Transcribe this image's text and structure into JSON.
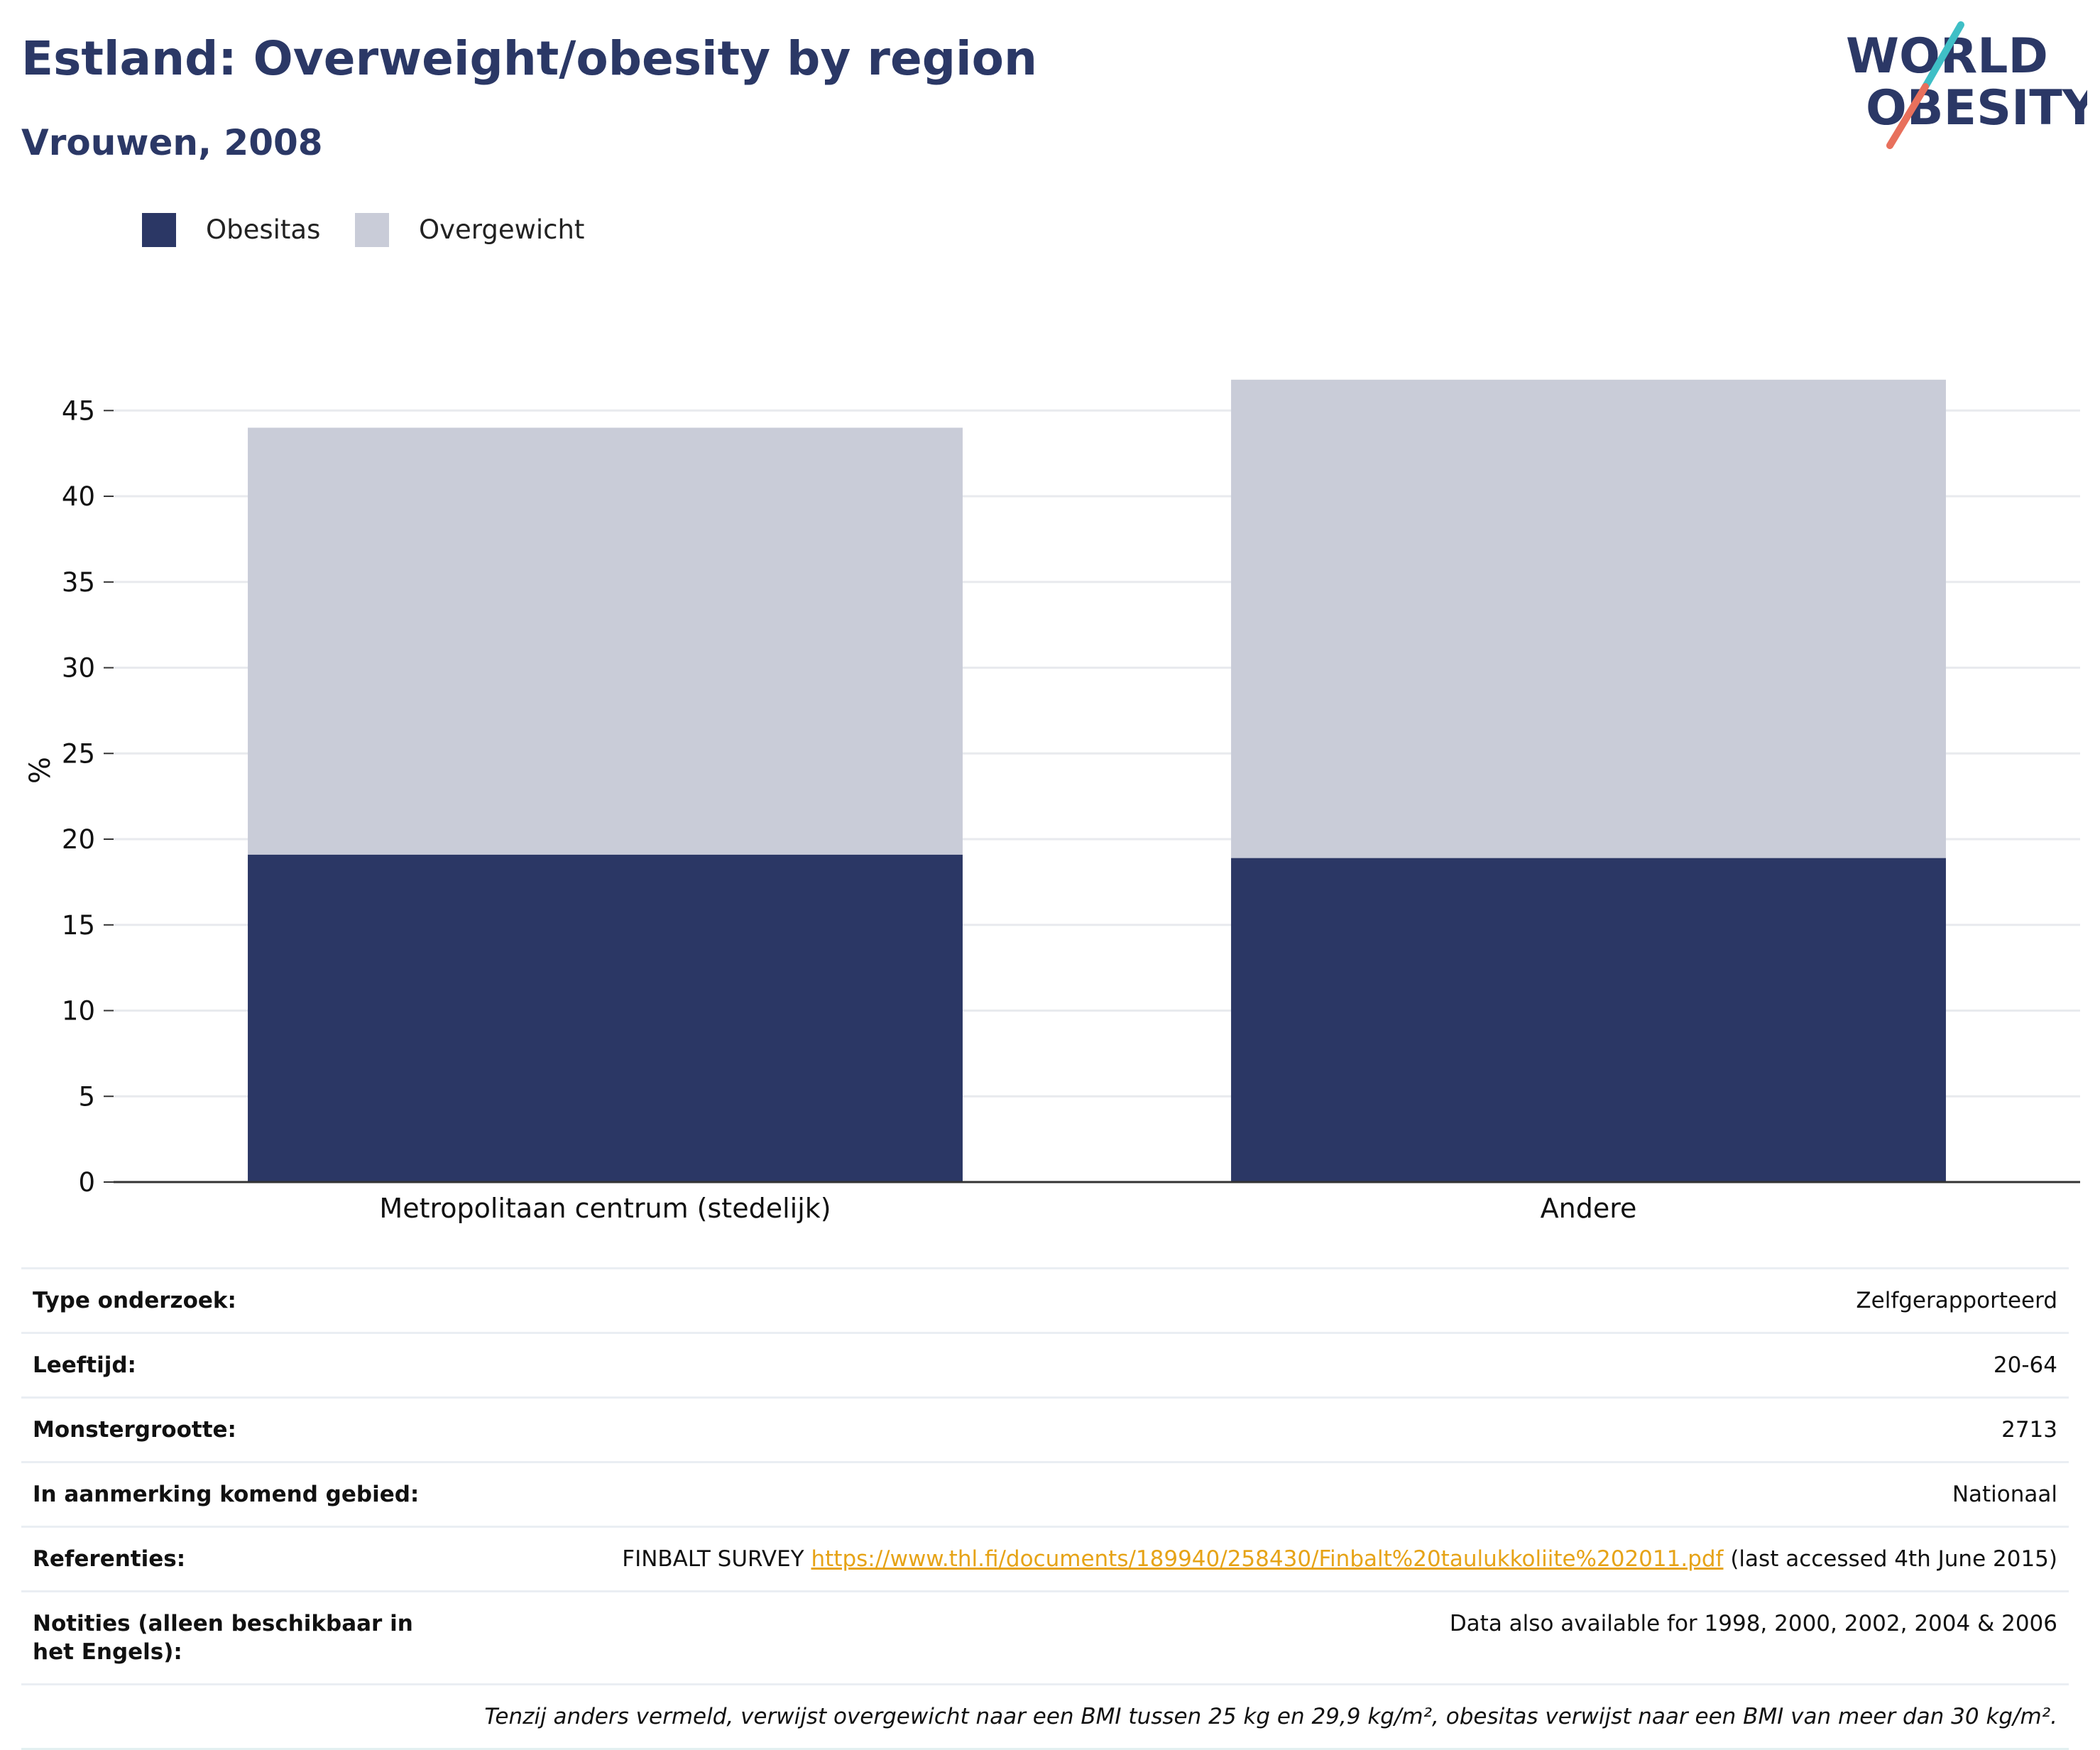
{
  "header": {
    "title": "Estland: Overweight/obesity by region",
    "subtitle": "Vrouwen, 2008"
  },
  "logo": {
    "line1": "WORLD",
    "line2": "OBESITY"
  },
  "legend": [
    {
      "label": "Obesitas",
      "color": "#2b3765"
    },
    {
      "label": "Overgewicht",
      "color": "#c9ccd8"
    }
  ],
  "chart_data": {
    "type": "bar",
    "stacked": true,
    "categories": [
      "Metropolitaan centrum (stedelijk)",
      "Andere"
    ],
    "series": [
      {
        "name": "Obesitas",
        "color": "#2b3765",
        "values": [
          19.1,
          18.9
        ]
      },
      {
        "name": "Overgewicht",
        "color": "#c9ccd8",
        "values": [
          24.9,
          27.9
        ]
      }
    ],
    "ylabel": "%",
    "ylim": [
      0,
      47
    ],
    "yticks": [
      0,
      5,
      10,
      15,
      20,
      25,
      30,
      35,
      40,
      45
    ],
    "grid": true,
    "legend_position": "top-left"
  },
  "info": {
    "survey_type": {
      "label": "Type onderzoek:",
      "value": "Zelfgerapporteerd"
    },
    "age": {
      "label": "Leeftijd:",
      "value": "20-64"
    },
    "sample_size": {
      "label": "Monstergrootte:",
      "value": "2713"
    },
    "area": {
      "label": "In aanmerking komend gebied:",
      "value": "Nationaal"
    },
    "references": {
      "label": "Referenties:",
      "prefix": "FINBALT SURVEY ",
      "link": "https://www.thl.fi/documents/189940/258430/Finbalt%20taulukkoliite%202011.pdf",
      "suffix": " (last accessed 4th June 2015)"
    },
    "notes": {
      "label": "Notities (alleen beschikbaar in het Engels):",
      "value": "Data also available for 1998, 2000, 2002, 2004 & 2006"
    },
    "footnote": "Tenzij anders vermeld, verwijst overgewicht naar een BMI tussen 25 kg en 29,9 kg/m², obesitas verwijst naar een BMI van meer dan 30 kg/m²."
  }
}
